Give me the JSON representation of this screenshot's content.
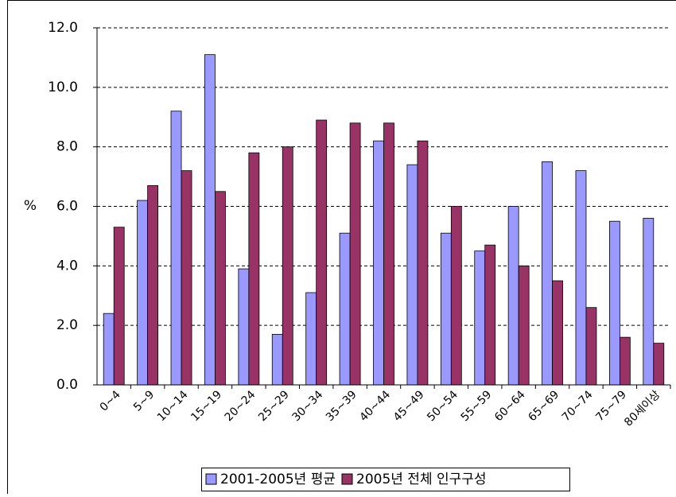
{
  "chart_data": {
    "type": "bar",
    "y_label": "%",
    "categories": [
      "0~4",
      "5~9",
      "10~14",
      "15~19",
      "20~24",
      "25~29",
      "30~34",
      "35~39",
      "40~44",
      "45~49",
      "50~54",
      "55~59",
      "60~64",
      "65~69",
      "70~74",
      "75~79",
      "80세이상"
    ],
    "series": [
      {
        "name": "2001-2005년 평균",
        "color": "#9999ff",
        "values": [
          2.4,
          6.2,
          9.2,
          11.1,
          3.9,
          1.7,
          3.1,
          5.1,
          8.2,
          7.4,
          5.1,
          4.5,
          6.0,
          7.5,
          7.2,
          5.5,
          5.6
        ]
      },
      {
        "name": "2005년 전체 인구구성",
        "color": "#993366",
        "values": [
          5.3,
          6.7,
          7.2,
          6.5,
          7.8,
          8.0,
          8.9,
          8.8,
          8.8,
          8.2,
          6.0,
          4.7,
          4.0,
          3.5,
          2.6,
          1.6,
          1.4
        ]
      }
    ],
    "ylim": [
      0,
      12
    ],
    "yticks": [
      {
        "value": 0,
        "label": "0.0"
      },
      {
        "value": 2,
        "label": "2.0"
      },
      {
        "value": 4,
        "label": "4.0"
      },
      {
        "value": 6,
        "label": "6.0"
      },
      {
        "value": 8,
        "label": "8.0"
      },
      {
        "value": 10,
        "label": "10.0"
      },
      {
        "value": 12,
        "label": "12.0"
      }
    ],
    "grid": true,
    "legend": "bottom"
  }
}
